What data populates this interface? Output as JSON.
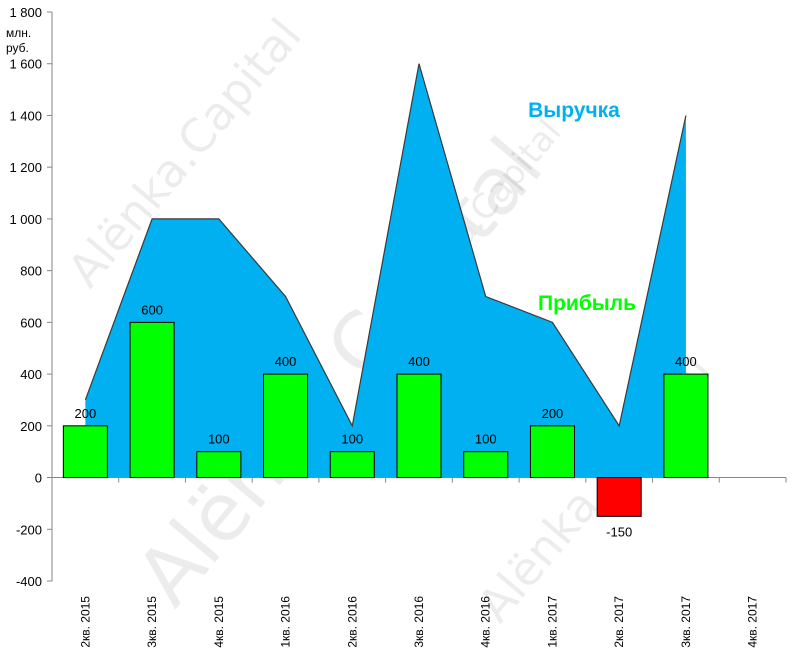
{
  "chart_data": {
    "type": "bar",
    "categories": [
      "2кв. 2015",
      "3кв. 2015",
      "4кв. 2015",
      "1кв. 2016",
      "2кв. 2016",
      "3кв. 2016",
      "4кв. 2016",
      "1кв. 2017",
      "2кв. 2017",
      "3кв. 2017",
      "4кв. 2017"
    ],
    "series": [
      {
        "name": "Выручка",
        "kind": "area",
        "color": "#00b0f0",
        "values": [
          300,
          1000,
          1000,
          700,
          200,
          1600,
          700,
          600,
          200,
          1400,
          null
        ]
      },
      {
        "name": "Прибыль",
        "kind": "bar",
        "color": "#00ff00",
        "negative_color": "#ff0000",
        "values": [
          200,
          600,
          100,
          400,
          100,
          400,
          100,
          200,
          -150,
          400,
          null
        ]
      }
    ],
    "ylim": [
      -400,
      1800
    ],
    "yticks": [
      -400,
      -200,
      0,
      200,
      400,
      600,
      800,
      1000,
      1200,
      1400,
      1600,
      1800
    ],
    "ytick_labels": [
      "-400",
      "-200",
      "0",
      "200",
      "400",
      "600",
      "800",
      "1 000",
      "1 200",
      "1 400",
      "1 600",
      "1 800"
    ],
    "unit_lines": [
      "млн.",
      "руб."
    ],
    "grid": false
  },
  "watermarks": [
    "Alёnka.Capital",
    "Alёnka Capital",
    "Alёnka.Capital",
    "Alёnka.Capital"
  ]
}
